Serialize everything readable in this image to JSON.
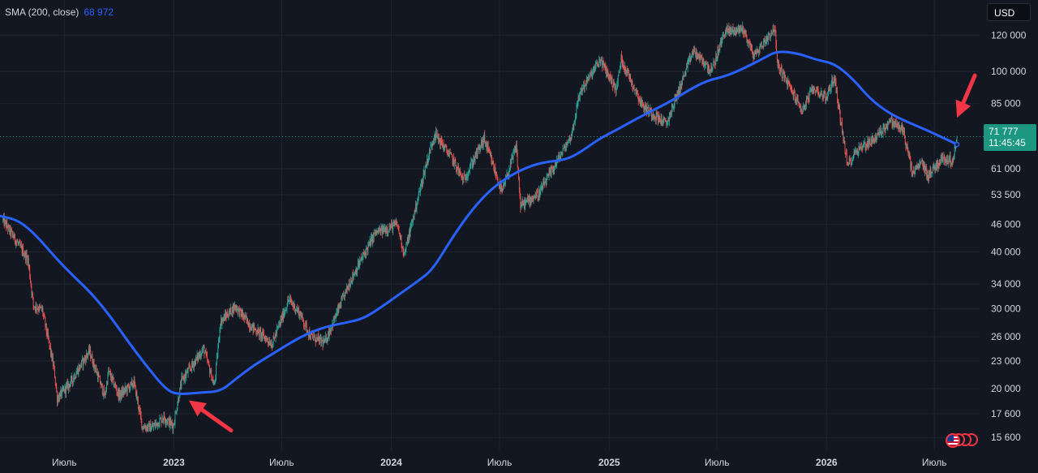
{
  "legend": {
    "indicator": "SMA (200, close)",
    "value": "68 972"
  },
  "currency_button": "USD",
  "last_price": {
    "price": "71 777",
    "countdown": "11:45:45"
  },
  "colors": {
    "background": "#131722",
    "sma_line": "#2962ff",
    "up_candle": "#26a69a",
    "down_candle": "#ef5350",
    "price_badge": "#1b9782",
    "arrow": "#f23645",
    "axis_text": "#d1d4dc"
  },
  "events_icon": "us-flag-icon",
  "chart_data": {
    "type": "line",
    "scale": "log",
    "grid": true,
    "ylim": [
      14800,
      128000
    ],
    "y_ticks": [
      "120 000",
      "100 000",
      "85 000",
      "71 777",
      "61 000",
      "53 500",
      "46 000",
      "40 000",
      "34 000",
      "30 000",
      "26 000",
      "23 000",
      "20 000",
      "17 600",
      "15 600"
    ],
    "y_tick_values": [
      120000,
      100000,
      85000,
      71777,
      61000,
      53500,
      46000,
      40000,
      34000,
      30000,
      26000,
      23000,
      20000,
      17600,
      15600
    ],
    "x_ticks": [
      {
        "label": "Июль",
        "date": "2022-07-01",
        "bold": false
      },
      {
        "label": "2023",
        "date": "2023-01-01",
        "bold": true
      },
      {
        "label": "Июль",
        "date": "2023-07-01",
        "bold": false
      },
      {
        "label": "2024",
        "date": "2024-01-01",
        "bold": true
      },
      {
        "label": "Июль",
        "date": "2024-07-01",
        "bold": false
      },
      {
        "label": "2025",
        "date": "2025-01-01",
        "bold": true
      },
      {
        "label": "Июль",
        "date": "2025-07-01",
        "bold": false
      },
      {
        "label": "2026",
        "date": "2026-01-01",
        "bold": true
      },
      {
        "label": "Июль",
        "date": "2026-07-01",
        "bold": false
      }
    ],
    "xlim": [
      "2022-03-15",
      "2026-09-15"
    ],
    "price_series": [
      {
        "x": "2022-03-20",
        "y": 47000
      },
      {
        "x": "2022-04-10",
        "y": 42500
      },
      {
        "x": "2022-05-01",
        "y": 38500
      },
      {
        "x": "2022-05-10",
        "y": 30500
      },
      {
        "x": "2022-05-25",
        "y": 29800
      },
      {
        "x": "2022-06-14",
        "y": 22000
      },
      {
        "x": "2022-06-19",
        "y": 19000
      },
      {
        "x": "2022-07-10",
        "y": 20500
      },
      {
        "x": "2022-08-12",
        "y": 24200
      },
      {
        "x": "2022-09-07",
        "y": 19200
      },
      {
        "x": "2022-09-13",
        "y": 21800
      },
      {
        "x": "2022-10-01",
        "y": 19300
      },
      {
        "x": "2022-10-26",
        "y": 20600
      },
      {
        "x": "2022-11-09",
        "y": 16500
      },
      {
        "x": "2022-11-25",
        "y": 16400
      },
      {
        "x": "2022-12-15",
        "y": 17300
      },
      {
        "x": "2022-12-31",
        "y": 16550
      },
      {
        "x": "2023-01-14",
        "y": 20800
      },
      {
        "x": "2023-02-20",
        "y": 24500
      },
      {
        "x": "2023-03-10",
        "y": 20200
      },
      {
        "x": "2023-03-20",
        "y": 28000
      },
      {
        "x": "2023-04-14",
        "y": 30400
      },
      {
        "x": "2023-05-10",
        "y": 27500
      },
      {
        "x": "2023-06-15",
        "y": 25100
      },
      {
        "x": "2023-07-13",
        "y": 31400
      },
      {
        "x": "2023-08-01",
        "y": 29200
      },
      {
        "x": "2023-08-18",
        "y": 26100
      },
      {
        "x": "2023-09-11",
        "y": 25200
      },
      {
        "x": "2023-10-24",
        "y": 34500
      },
      {
        "x": "2023-12-05",
        "y": 44000
      },
      {
        "x": "2024-01-11",
        "y": 46000
      },
      {
        "x": "2024-01-23",
        "y": 39500
      },
      {
        "x": "2024-02-28",
        "y": 62000
      },
      {
        "x": "2024-03-14",
        "y": 73000
      },
      {
        "x": "2024-04-13",
        "y": 64000
      },
      {
        "x": "2024-05-01",
        "y": 57500
      },
      {
        "x": "2024-06-05",
        "y": 71000
      },
      {
        "x": "2024-07-05",
        "y": 54000
      },
      {
        "x": "2024-07-29",
        "y": 68500
      },
      {
        "x": "2024-08-05",
        "y": 50500
      },
      {
        "x": "2024-09-06",
        "y": 54000
      },
      {
        "x": "2024-10-29",
        "y": 72000
      },
      {
        "x": "2024-11-13",
        "y": 90000
      },
      {
        "x": "2024-12-17",
        "y": 106000
      },
      {
        "x": "2025-01-13",
        "y": 91000
      },
      {
        "x": "2025-01-21",
        "y": 106500
      },
      {
        "x": "2025-02-26",
        "y": 84000
      },
      {
        "x": "2025-04-07",
        "y": 76500
      },
      {
        "x": "2025-05-22",
        "y": 111000
      },
      {
        "x": "2025-06-22",
        "y": 100000
      },
      {
        "x": "2025-07-14",
        "y": 122500
      },
      {
        "x": "2025-08-14",
        "y": 124000
      },
      {
        "x": "2025-09-01",
        "y": 108000
      },
      {
        "x": "2025-10-06",
        "y": 125000
      },
      {
        "x": "2025-10-10",
        "y": 104000
      },
      {
        "x": "2025-11-21",
        "y": 82000
      },
      {
        "x": "2025-12-10",
        "y": 92000
      },
      {
        "x": "2025-12-31",
        "y": 87500
      },
      {
        "x": "2026-01-14",
        "y": 97000
      },
      {
        "x": "2026-02-05",
        "y": 62000
      },
      {
        "x": "2026-02-20",
        "y": 67000
      },
      {
        "x": "2026-03-25",
        "y": 71500
      },
      {
        "x": "2026-04-18",
        "y": 78000
      },
      {
        "x": "2026-05-10",
        "y": 74000
      },
      {
        "x": "2026-05-25",
        "y": 59500
      },
      {
        "x": "2026-06-10",
        "y": 63000
      },
      {
        "x": "2026-06-20",
        "y": 59000
      },
      {
        "x": "2026-07-15",
        "y": 64500
      },
      {
        "x": "2026-08-01",
        "y": 63500
      },
      {
        "x": "2026-08-08",
        "y": 71777
      }
    ],
    "sma_series": {
      "name": "SMA (200, close)",
      "points": [
        {
          "x": "2022-03-15",
          "y": 48000
        },
        {
          "x": "2022-04-15",
          "y": 47000
        },
        {
          "x": "2022-05-15",
          "y": 43500
        },
        {
          "x": "2022-06-15",
          "y": 39000
        },
        {
          "x": "2022-07-15",
          "y": 35500
        },
        {
          "x": "2022-08-15",
          "y": 32500
        },
        {
          "x": "2022-09-15",
          "y": 29000
        },
        {
          "x": "2022-10-15",
          "y": 25500
        },
        {
          "x": "2022-11-15",
          "y": 22500
        },
        {
          "x": "2022-12-20",
          "y": 19800
        },
        {
          "x": "2023-01-10",
          "y": 19400
        },
        {
          "x": "2023-02-15",
          "y": 19600
        },
        {
          "x": "2023-03-20",
          "y": 19700
        },
        {
          "x": "2023-04-15",
          "y": 21000
        },
        {
          "x": "2023-05-15",
          "y": 22500
        },
        {
          "x": "2023-06-15",
          "y": 23800
        },
        {
          "x": "2023-07-15",
          "y": 25200
        },
        {
          "x": "2023-08-15",
          "y": 26500
        },
        {
          "x": "2023-09-15",
          "y": 27400
        },
        {
          "x": "2023-10-15",
          "y": 27900
        },
        {
          "x": "2023-11-15",
          "y": 28500
        },
        {
          "x": "2023-12-15",
          "y": 30200
        },
        {
          "x": "2024-01-15",
          "y": 32300
        },
        {
          "x": "2024-02-15",
          "y": 34500
        },
        {
          "x": "2024-03-10",
          "y": 36500
        },
        {
          "x": "2024-04-10",
          "y": 42500
        },
        {
          "x": "2024-05-10",
          "y": 48500
        },
        {
          "x": "2024-06-10",
          "y": 54000
        },
        {
          "x": "2024-07-10",
          "y": 58000
        },
        {
          "x": "2024-08-10",
          "y": 61000
        },
        {
          "x": "2024-09-10",
          "y": 63000
        },
        {
          "x": "2024-10-20",
          "y": 63800
        },
        {
          "x": "2024-11-15",
          "y": 66500
        },
        {
          "x": "2024-12-15",
          "y": 71000
        },
        {
          "x": "2025-01-15",
          "y": 74500
        },
        {
          "x": "2025-02-15",
          "y": 78500
        },
        {
          "x": "2025-03-15",
          "y": 82000
        },
        {
          "x": "2025-04-15",
          "y": 86000
        },
        {
          "x": "2025-05-15",
          "y": 91000
        },
        {
          "x": "2025-06-15",
          "y": 95500
        },
        {
          "x": "2025-07-15",
          "y": 97500
        },
        {
          "x": "2025-08-15",
          "y": 101500
        },
        {
          "x": "2025-09-15",
          "y": 106500
        },
        {
          "x": "2025-10-10",
          "y": 111000
        },
        {
          "x": "2025-11-15",
          "y": 109500
        },
        {
          "x": "2025-12-15",
          "y": 106000
        },
        {
          "x": "2026-01-15",
          "y": 104000
        },
        {
          "x": "2026-02-15",
          "y": 96000
        },
        {
          "x": "2026-03-15",
          "y": 87000
        },
        {
          "x": "2026-04-15",
          "y": 81000
        },
        {
          "x": "2026-05-15",
          "y": 77500
        },
        {
          "x": "2026-06-15",
          "y": 74500
        },
        {
          "x": "2026-07-15",
          "y": 71500
        },
        {
          "x": "2026-08-08",
          "y": 69000
        }
      ]
    },
    "annotations": [
      {
        "type": "arrow",
        "pointing_to": {
          "x": "2023-01-18",
          "y": 19300
        }
      },
      {
        "type": "arrow",
        "pointing_to": {
          "x": "2026-08-08",
          "y": 74000
        }
      }
    ]
  }
}
